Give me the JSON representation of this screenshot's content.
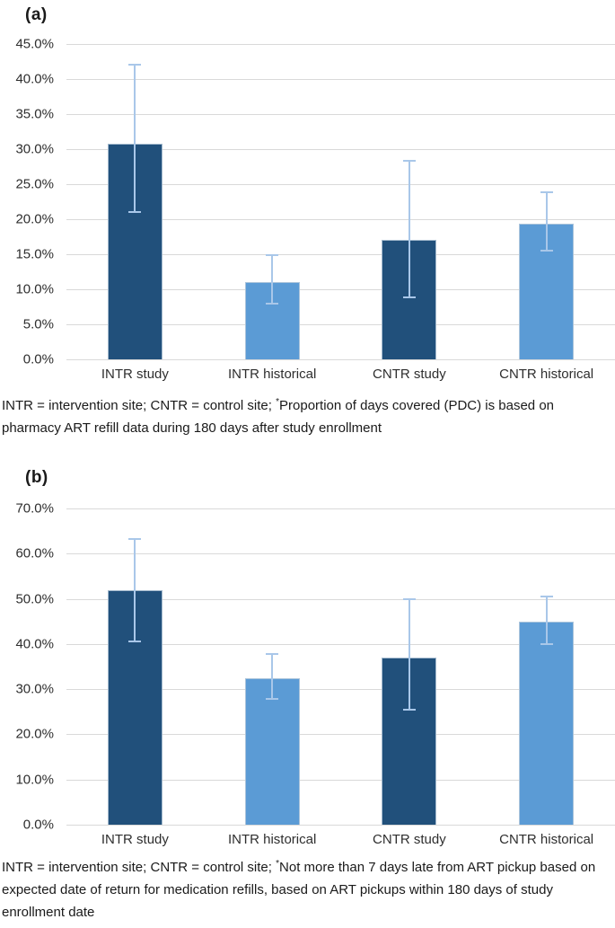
{
  "chart_data": [
    {
      "type": "bar",
      "panel_label": "(a)",
      "title": "",
      "xlabel": "",
      "ylabel": "",
      "categories": [
        "INTR study",
        "INTR historical",
        "CNTR study",
        "CNTR historical"
      ],
      "values": [
        30.8,
        11.0,
        17.0,
        19.4
      ],
      "error_low": [
        21.0,
        8.0,
        8.8,
        15.5
      ],
      "error_high": [
        42.1,
        14.9,
        28.3,
        23.9
      ],
      "ylim": [
        0,
        45
      ],
      "y_ticks": [
        "45.0%",
        "40.0%",
        "35.0%",
        "30.0%",
        "25.0%",
        "20.0%",
        "15.0%",
        "10.0%",
        "5.0%",
        "0.0%"
      ],
      "grid": true,
      "legend": "none",
      "bar_colors": [
        "#21507B",
        "#5B9BD5",
        "#21507B",
        "#5B9BD5"
      ],
      "error_bar_color": "#A9C7E9",
      "gridline_color": "#D9D9D9",
      "footnote": {
        "before": "INTR = intervention site; CNTR = control site; ",
        "asterisk": "*",
        "after": "Proportion of days covered (PDC) is based on pharmacy ART refill data during 180 days after study enrollment"
      }
    },
    {
      "type": "bar",
      "panel_label": "(b)",
      "title": "",
      "xlabel": "",
      "ylabel": "",
      "categories": [
        "INTR study",
        "INTR historical",
        "CNTR study",
        "CNTR historical"
      ],
      "values": [
        52.0,
        32.5,
        37.0,
        45.0
      ],
      "error_low": [
        40.5,
        27.9,
        25.4,
        40.0
      ],
      "error_high": [
        63.2,
        37.8,
        49.9,
        50.5
      ],
      "ylim": [
        0,
        70
      ],
      "y_ticks": [
        "70.0%",
        "60.0%",
        "50.0%",
        "40.0%",
        "30.0%",
        "20.0%",
        "10.0%",
        "0.0%"
      ],
      "grid": true,
      "legend": "none",
      "bar_colors": [
        "#21507B",
        "#5B9BD5",
        "#21507B",
        "#5B9BD5"
      ],
      "error_bar_color": "#A9C7E9",
      "gridline_color": "#D9D9D9",
      "footnote": {
        "before": "INTR = intervention site; CNTR = control site; ",
        "asterisk": "*",
        "after": "Not more than 7 days late from ART pickup based on expected date of return for medication refills, based on ART pickups within 180 days of study enrollment date"
      }
    }
  ]
}
